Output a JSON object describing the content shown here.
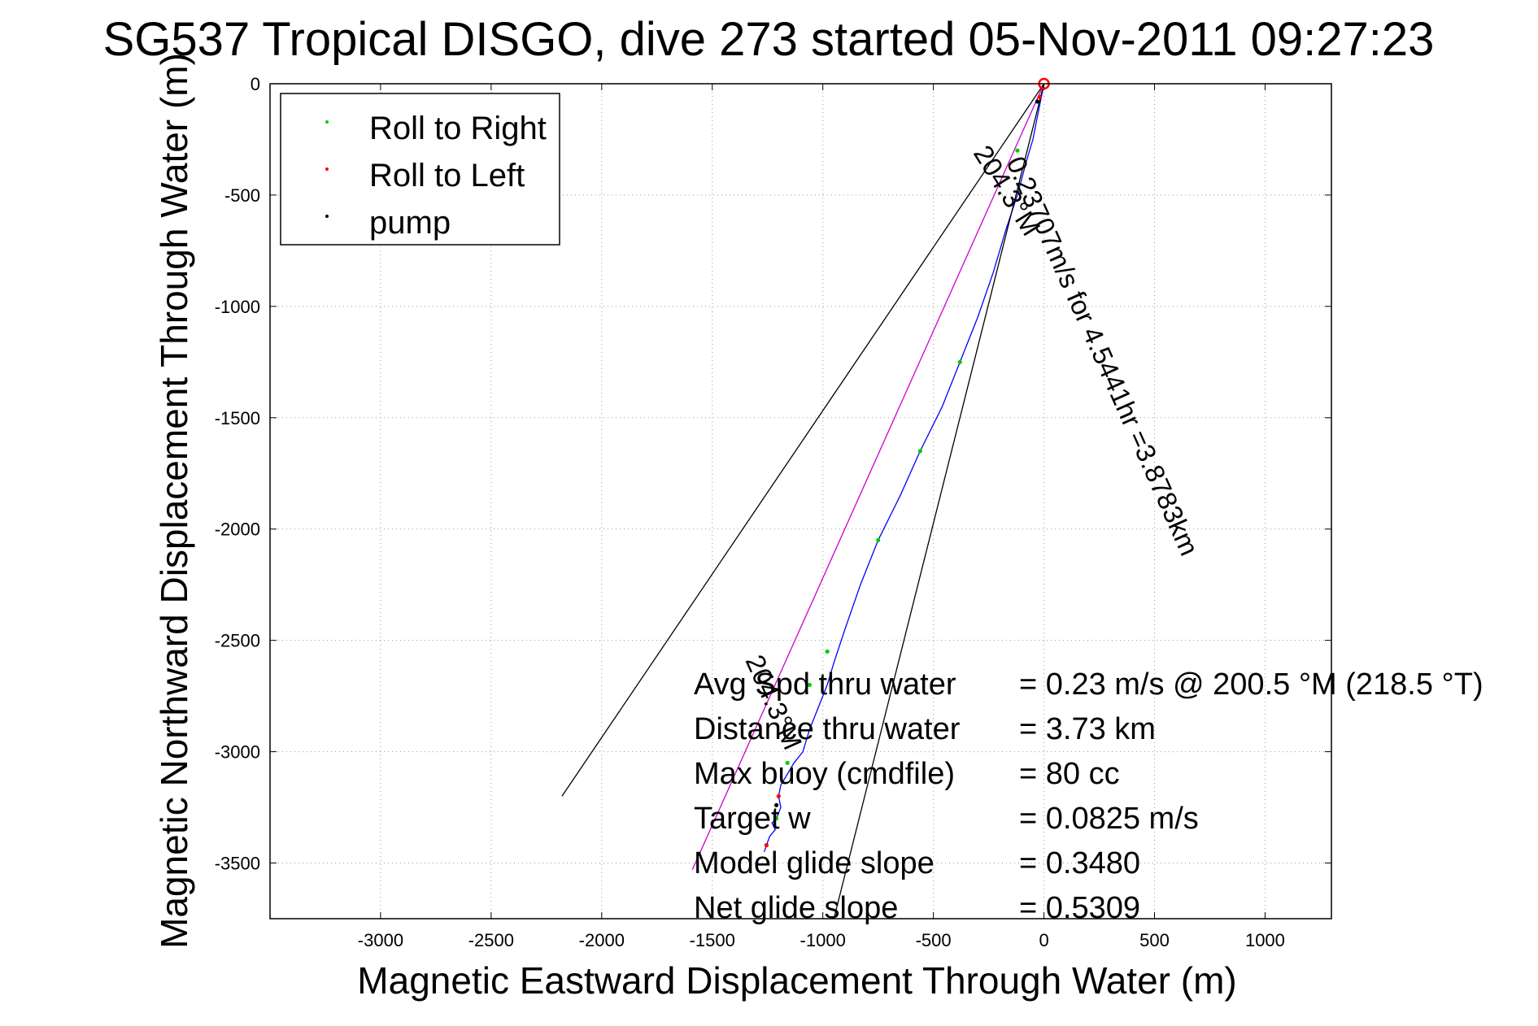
{
  "chart_data": {
    "type": "line",
    "title": "SG537 Tropical DISGO, dive 273 started 05-Nov-2011 09:27:23",
    "xlabel": "Magnetic Eastward Displacement Through Water (m)",
    "ylabel": "Magnetic Northward Displacement Through Water (m)",
    "xlim": [
      -3500,
      1300
    ],
    "ylim": [
      -3750,
      0
    ],
    "x_ticks": [
      -3000,
      -2500,
      -2000,
      -1500,
      -1000,
      -500,
      0,
      500,
      1000
    ],
    "y_ticks": [
      0,
      -500,
      -1000,
      -1500,
      -2000,
      -2500,
      -3000,
      -3500
    ],
    "grid": true,
    "legend": {
      "location": "top-left",
      "entries": [
        {
          "label": "Roll to Right",
          "color": "#00cc00"
        },
        {
          "label": "Roll to Left",
          "color": "#ff0000"
        },
        {
          "label": "pump",
          "color": "#000000"
        }
      ]
    },
    "series": [
      {
        "color": "#0000ff",
        "x": [
          0,
          -20,
          -50,
          -80,
          -120,
          -170,
          -230,
          -300,
          -380,
          -460,
          -560,
          -650,
          -750,
          -830,
          -900,
          -950,
          -980,
          -1020,
          -1060,
          -1090,
          -1130,
          -1160,
          -1190,
          -1200,
          -1190,
          -1210,
          -1230,
          -1215,
          -1240,
          -1255,
          -1265
        ],
        "y": [
          0,
          -100,
          -250,
          -350,
          -500,
          -650,
          -850,
          -1050,
          -1250,
          -1450,
          -1650,
          -1850,
          -2050,
          -2250,
          -2450,
          -2600,
          -2700,
          -2800,
          -2900,
          -3000,
          -3050,
          -3100,
          -3150,
          -3200,
          -3250,
          -3300,
          -3320,
          -3350,
          -3380,
          -3420,
          -3450
        ]
      },
      {
        "color": "#cc00cc",
        "x": [
          0,
          -1590
        ],
        "y": [
          0,
          -3530
        ]
      },
      {
        "color": "#000000",
        "x": [
          0,
          -2180
        ],
        "y": [
          0,
          -3200
        ]
      },
      {
        "color": "#000000",
        "x": [
          0,
          -950
        ],
        "y": [
          0,
          -3750
        ]
      }
    ],
    "markers": {
      "roll_right": {
        "color": "#00cc00",
        "x": [
          -120,
          -380,
          -560,
          -750,
          -980,
          -1060,
          -1160,
          -1210
        ],
        "y": [
          -300,
          -1250,
          -1650,
          -2050,
          -2550,
          -2700,
          -3050,
          -3300
        ]
      },
      "roll_left": {
        "color": "#ff0000",
        "x": [
          -20,
          -1200,
          -1255
        ],
        "y": [
          -60,
          -3200,
          -3420
        ]
      },
      "pump": {
        "color": "#000000",
        "x": [
          -30,
          -1210
        ],
        "y": [
          -80,
          -3240
        ]
      }
    },
    "start_marker": {
      "color": "#ff0000",
      "x": 0,
      "y": 0
    },
    "track_labels": [
      {
        "text": "0.23707m/s for 4.5441hr =3.8783km"
      },
      {
        "text": "204.3°M"
      },
      {
        "text": "204.3°M"
      }
    ],
    "stats": [
      {
        "label": "Avg Spd thru water",
        "value": "=  0.23 m/s @ 200.5 °M (218.5 °T)"
      },
      {
        "label": "Distance thru water",
        "value": "=  3.73 km"
      },
      {
        "label": "Max buoy (cmdfile)",
        "value": "= 80 cc"
      },
      {
        "label": "Target w",
        "value": "= 0.0825 m/s"
      },
      {
        "label": "Model glide slope",
        "value": "= 0.3480"
      },
      {
        "label": "Net glide slope",
        "value": "= 0.5309"
      }
    ]
  }
}
